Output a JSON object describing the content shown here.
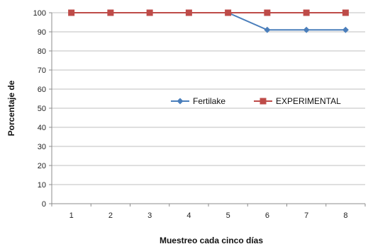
{
  "chart_data": {
    "type": "line",
    "title": "",
    "xlabel": "Muestreo  cada cinco días",
    "ylabel": "Porcentaje de",
    "categories": [
      "1",
      "2",
      "3",
      "4",
      "5",
      "6",
      "7",
      "8"
    ],
    "ylim": [
      0,
      100
    ],
    "yticks": [
      "0",
      "10",
      "20",
      "30",
      "40",
      "50",
      "60",
      "70",
      "80",
      "90",
      "100"
    ],
    "grid": true,
    "legend_position": "center-right",
    "series": [
      {
        "name": "Fertilake",
        "values": [
          100,
          100,
          100,
          100,
          100,
          91,
          91,
          91
        ],
        "color": "#4a7ebb",
        "marker": "diamond"
      },
      {
        "name": "EXPERIMENTAL",
        "values": [
          100,
          100,
          100,
          100,
          100,
          100,
          100,
          100
        ],
        "color": "#be4b48",
        "marker": "square"
      }
    ]
  }
}
